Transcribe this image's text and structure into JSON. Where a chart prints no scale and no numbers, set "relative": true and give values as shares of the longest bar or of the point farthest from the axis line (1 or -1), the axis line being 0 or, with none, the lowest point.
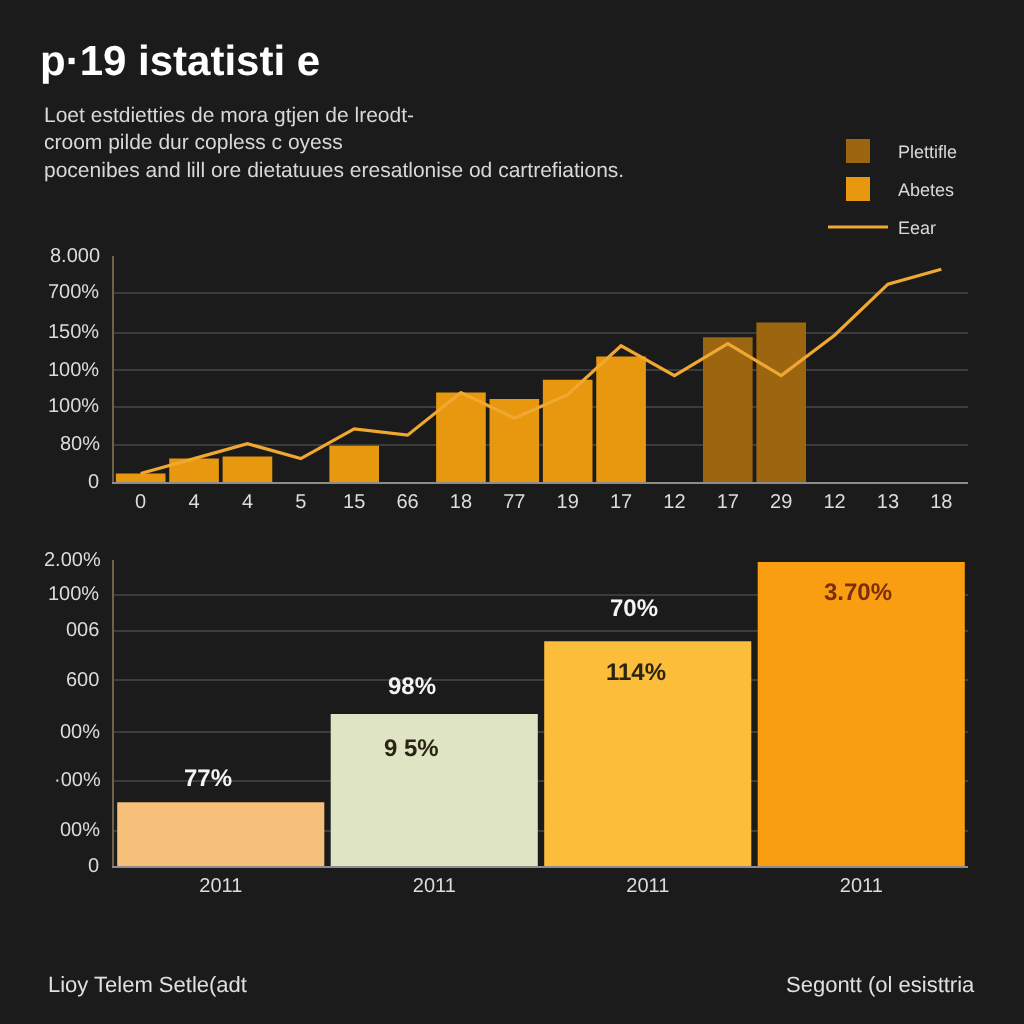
{
  "chart_data": [
    {
      "type": "bar",
      "title": "p·19 istatisti e",
      "subtitle": "Loet estdietties de mora gtjen de lreodt-\ncroom pilde dur copless c oyess\npocenibes and lill ore dietatuues eresatlonise od cartrefiations.",
      "categories": [
        "0",
        "4",
        "4",
        "5",
        "15",
        "66",
        "18",
        "77",
        "19",
        "17",
        "12",
        "17",
        "29",
        "12",
        "13",
        "18"
      ],
      "series": [
        {
          "name": "Plettifle",
          "color": "#9c6510",
          "values": [
            null,
            null,
            null,
            null,
            null,
            null,
            null,
            null,
            null,
            null,
            null,
            0.68,
            0.75,
            null,
            null,
            null
          ]
        },
        {
          "name": "Abetes",
          "color": "#e8980f",
          "values": [
            0.04,
            0.11,
            0.12,
            null,
            0.17,
            null,
            0.42,
            0.39,
            0.48,
            0.59,
            null,
            null,
            null,
            null,
            null,
            null
          ]
        },
        {
          "name": "Eear",
          "type": "line",
          "color": "#f0a830",
          "values": [
            0.04,
            0.11,
            0.18,
            0.11,
            0.25,
            0.22,
            0.42,
            0.3,
            0.41,
            0.64,
            0.5,
            0.65,
            0.5,
            0.69,
            0.93,
            1
          ]
        }
      ],
      "relative": true,
      "grid": "y",
      "legend": "top right",
      "annotations": [
        "8.000",
        "700%",
        "150%",
        "100%",
        "100%",
        "80%",
        "0"
      ]
    },
    {
      "type": "bar",
      "categories": [
        "2011",
        "2011",
        "2011",
        "2011"
      ],
      "values": [
        0.21,
        0.5,
        0.74,
        1
      ],
      "colors": [
        "#f7c07a",
        "#dfe4c4",
        "#fbbd3a",
        "#f99e10"
      ],
      "relative": true,
      "grid": "y",
      "annotations": [
        "2.00%",
        "100%",
        "006",
        "600",
        "00%",
        "·00%",
        "00%",
        "0",
        "77%",
        "98%",
        "9 5%",
        "70%",
        "114%",
        "3.70%",
        "Lioy Telem Setle(adt",
        "Segontt (ol esisttria"
      ]
    }
  ]
}
